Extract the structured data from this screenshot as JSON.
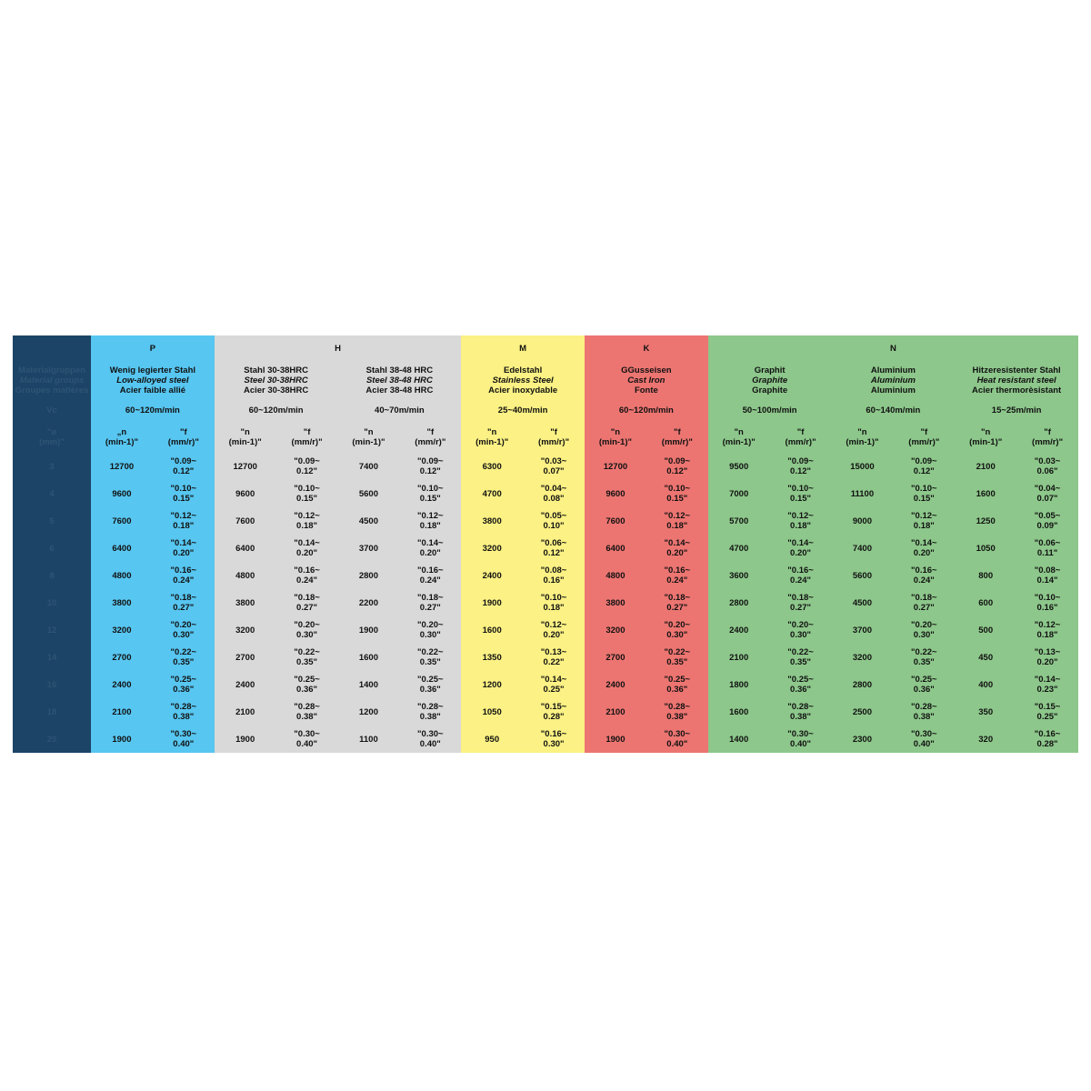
{
  "colors": {
    "left": "#1b4466",
    "P": "#57c6f1",
    "H": "#d9d9d9",
    "M": "#fbf184",
    "K": "#ec7571",
    "N": "#8dc78b"
  },
  "left": {
    "groups_de": "Materialgruppen",
    "groups_en": "Material groups",
    "groups_fr": "Groupes matières",
    "vc": "Vc",
    "diameter_header": "\"ø\n(mm)\"",
    "diameters": [
      "3",
      "4",
      "5",
      "6",
      "8",
      "10",
      "12",
      "14",
      "16",
      "18",
      "20"
    ]
  },
  "groups": [
    {
      "letter": "P",
      "span": 1
    },
    {
      "letter": "H",
      "span": 2
    },
    {
      "letter": "M",
      "span": 1
    },
    {
      "letter": "K",
      "span": 1
    },
    {
      "letter": "N",
      "span": 3
    }
  ],
  "materials": [
    {
      "group": "P",
      "de": "Wenig legierter Stahl",
      "en": "Low-alloyed steel",
      "fr": "Acier faible allié",
      "vc": "60~120m/min",
      "n_header": "„n\n(min-1)\"",
      "f_header": "\"f\n(mm/r)\"",
      "n": [
        "12700",
        "9600",
        "7600",
        "6400",
        "4800",
        "3800",
        "3200",
        "2700",
        "2400",
        "2100",
        "1900"
      ],
      "f": [
        "\"0.09~\n0.12\"",
        "\"0.10~\n0.15\"",
        "\"0.12~\n0.18\"",
        "\"0.14~\n0.20\"",
        "\"0.16~\n0.24\"",
        "\"0.18~\n0.27\"",
        "\"0.20~\n0.30\"",
        "\"0.22~\n0.35\"",
        "\"0.25~\n0.36\"",
        "\"0.28~\n0.38\"",
        "\"0.30~\n0.40\""
      ]
    },
    {
      "group": "H",
      "de": "Stahl 30-38HRC",
      "en": "Steel 30-38HRC",
      "fr": "Acier 30-38HRC",
      "vc": "60~120m/min",
      "n_header": "\"n\n(min-1)\"",
      "f_header": "\"f\n(mm/r)\"",
      "n": [
        "12700",
        "9600",
        "7600",
        "6400",
        "4800",
        "3800",
        "3200",
        "2700",
        "2400",
        "2100",
        "1900"
      ],
      "f": [
        "\"0.09~\n0.12\"",
        "\"0.10~\n0.15\"",
        "\"0.12~\n0.18\"",
        "\"0.14~\n0.20\"",
        "\"0.16~\n0.24\"",
        "\"0.18~\n0.27\"",
        "\"0.20~\n0.30\"",
        "\"0.22~\n0.35\"",
        "\"0.25~\n0.36\"",
        "\"0.28~\n0.38\"",
        "\"0.30~\n0.40\""
      ]
    },
    {
      "group": "H",
      "de": "Stahl 38-48 HRC",
      "en": "Steel 38-48 HRC",
      "fr": "Acier 38-48 HRC",
      "vc": "40~70m/min",
      "n_header": "\"n\n(min-1)\"",
      "f_header": "\"f\n(mm/r)\"",
      "n": [
        "7400",
        "5600",
        "4500",
        "3700",
        "2800",
        "2200",
        "1900",
        "1600",
        "1400",
        "1200",
        "1100"
      ],
      "f": [
        "\"0.09~\n0.12\"",
        "\"0.10~\n0.15\"",
        "\"0.12~\n0.18\"",
        "\"0.14~\n0.20\"",
        "\"0.16~\n0.24\"",
        "\"0.18~\n0.27\"",
        "\"0.20~\n0.30\"",
        "\"0.22~\n0.35\"",
        "\"0.25~\n0.36\"",
        "\"0.28~\n0.38\"",
        "\"0.30~\n0.40\""
      ]
    },
    {
      "group": "M",
      "de": "Edelstahl",
      "en": "Stainless Steel",
      "fr": "Acier inoxydable",
      "vc": "25~40m/min",
      "n_header": "\"n\n(min-1)\"",
      "f_header": "\"f\n(mm/r)\"",
      "n": [
        "6300",
        "4700",
        "3800",
        "3200",
        "2400",
        "1900",
        "1600",
        "1350",
        "1200",
        "1050",
        "950"
      ],
      "f": [
        "\"0.03~\n0.07\"",
        "\"0.04~\n0.08\"",
        "\"0.05~\n0.10\"",
        "\"0.06~\n0.12\"",
        "\"0.08~\n0.16\"",
        "\"0.10~\n0.18\"",
        "\"0.12~\n0.20\"",
        "\"0.13~\n0.22\"",
        "\"0.14~\n0.25\"",
        "\"0.15~\n0.28\"",
        "\"0.16~\n0.30\""
      ]
    },
    {
      "group": "K",
      "de": "GGusseisen",
      "en": "Cast Iron",
      "fr": "Fonte",
      "vc": "60~120m/min",
      "n_header": "\"n\n(min-1)\"",
      "f_header": "\"f\n(mm/r)\"",
      "n": [
        "12700",
        "9600",
        "7600",
        "6400",
        "4800",
        "3800",
        "3200",
        "2700",
        "2400",
        "2100",
        "1900"
      ],
      "f": [
        "\"0.09~\n0.12\"",
        "\"0.10~\n0.15\"",
        "\"0.12~\n0.18\"",
        "\"0.14~\n0.20\"",
        "\"0.16~\n0.24\"",
        "\"0.18~\n0.27\"",
        "\"0.20~\n0.30\"",
        "\"0.22~\n0.35\"",
        "\"0.25~\n0.36\"",
        "\"0.28~\n0.38\"",
        "\"0.30~\n0.40\""
      ]
    },
    {
      "group": "N",
      "de": "Graphit",
      "en": "Graphite",
      "fr": "Graphite",
      "vc": "50~100m/min",
      "n_header": "\"n\n(min-1)\"",
      "f_header": "\"f\n(mm/r)\"",
      "n": [
        "9500",
        "7000",
        "5700",
        "4700",
        "3600",
        "2800",
        "2400",
        "2100",
        "1800",
        "1600",
        "1400"
      ],
      "f": [
        "\"0.09~\n0.12\"",
        "\"0.10~\n0.15\"",
        "\"0.12~\n0.18\"",
        "\"0.14~\n0.20\"",
        "\"0.16~\n0.24\"",
        "\"0.18~\n0.27\"",
        "\"0.20~\n0.30\"",
        "\"0.22~\n0.35\"",
        "\"0.25~\n0.36\"",
        "\"0.28~\n0.38\"",
        "\"0.30~\n0.40\""
      ]
    },
    {
      "group": "N",
      "de": "Aluminium",
      "en": "Aluminium",
      "fr": "Aluminium",
      "vc": "60~140m/min",
      "n_header": "\"n\n(min-1)\"",
      "f_header": "\"f\n(mm/r)\"",
      "n": [
        "15000",
        "11100",
        "9000",
        "7400",
        "5600",
        "4500",
        "3700",
        "3200",
        "2800",
        "2500",
        "2300"
      ],
      "f": [
        "\"0.09~\n0.12\"",
        "\"0.10~\n0.15\"",
        "\"0.12~\n0.18\"",
        "\"0.14~\n0.20\"",
        "\"0.16~\n0.24\"",
        "\"0.18~\n0.27\"",
        "\"0.20~\n0.30\"",
        "\"0.22~\n0.35\"",
        "\"0.25~\n0.36\"",
        "\"0.28~\n0.38\"",
        "\"0.30~\n0.40\""
      ]
    },
    {
      "group": "N",
      "de": "Hitzeresistenter Stahl",
      "en": "Heat resistant steel",
      "fr": "Acier thermorèsistant",
      "vc": "15~25m/min",
      "n_header": "\"n\n(min-1)\"",
      "f_header": "\"f\n(mm/r)\"",
      "n": [
        "2100",
        "1600",
        "1250",
        "1050",
        "800",
        "600",
        "500",
        "450",
        "400",
        "350",
        "320"
      ],
      "f": [
        "\"0.03~\n0.06\"",
        "\"0.04~\n0.07\"",
        "\"0.05~\n0.09\"",
        "\"0.06~\n0.11\"",
        "\"0.08~\n0.14\"",
        "\"0.10~\n0.16\"",
        "\"0.12~\n0.18\"",
        "\"0.13~\n0.20\"",
        "\"0.14~\n0.23\"",
        "\"0.15~\n0.25\"",
        "\"0.16~\n0.28\""
      ]
    }
  ]
}
